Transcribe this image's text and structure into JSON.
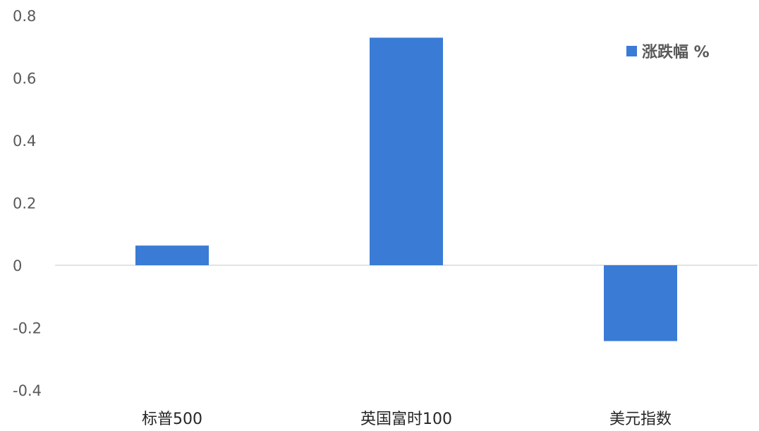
{
  "chart_data": {
    "type": "bar",
    "categories": [
      "标普500",
      "英国富时100",
      "美元指数"
    ],
    "series": [
      {
        "name": "涨跌幅 %",
        "values": [
          0.063,
          0.729,
          -0.243
        ]
      }
    ],
    "title": "",
    "xlabel": "",
    "ylabel": "",
    "ylim": [
      -0.4,
      0.8
    ],
    "yticks": [
      0.8,
      0.6,
      0.4,
      0.2,
      0,
      -0.2,
      -0.4
    ],
    "ytick_labels": [
      "0.8",
      "0.6",
      "0.4",
      "0.2",
      "0",
      "-0.2",
      "-0.4"
    ],
    "grid": false,
    "legend_position": "top-right",
    "colors": {
      "bar": "#3a7bd5",
      "axis": "#d9d9d9"
    }
  }
}
